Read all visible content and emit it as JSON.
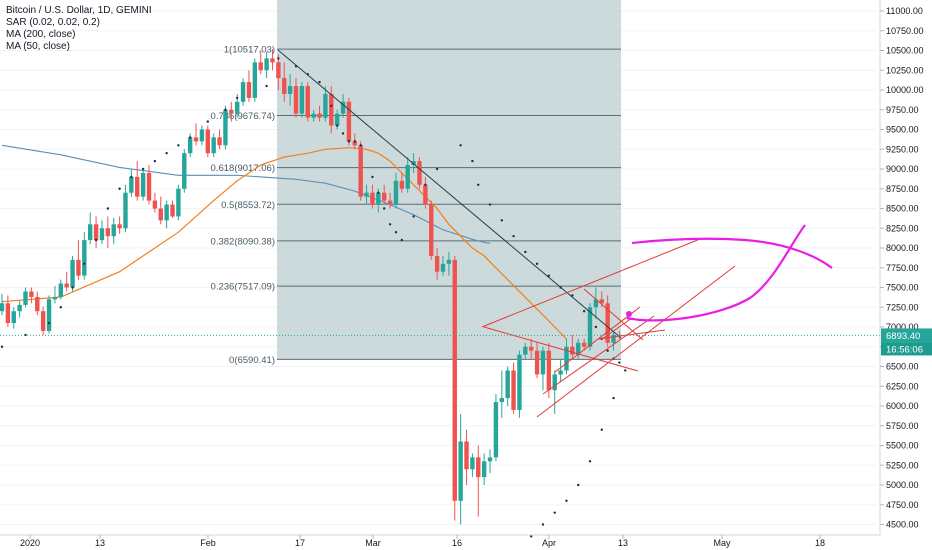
{
  "legend": {
    "symbol": "Bitcoin / U.S. Dollar, 1D, GEMINI",
    "sar": "SAR (0.02, 0.02, 0.2)",
    "ma200": "MA (200, close)",
    "ma50": "MA (50, close)"
  },
  "colors": {
    "up": "#26a69a",
    "down": "#ef5350",
    "fib_zone": "#b9cccd",
    "ma200": "#5b8fb9",
    "ma50": "#f57f17",
    "sar": "#1c2b4a",
    "trend": "#e53935",
    "magenta": "#e91ee5",
    "last_price_bg": "#26a69a",
    "countdown_bg": "#1b9c8f"
  },
  "price_axis": {
    "labels": [
      "11000.00",
      "10750.00",
      "10500.00",
      "10250.00",
      "10000.00",
      "9750.00",
      "9500.00",
      "9250.00",
      "9000.00",
      "8750.00",
      "8500.00",
      "8250.00",
      "8000.00",
      "7750.00",
      "7500.00",
      "7250.00",
      "7000.00",
      "6750.00",
      "6500.00",
      "6250.00",
      "6000.00",
      "5750.00",
      "5500.00",
      "5250.00",
      "5000.00",
      "4750.00",
      "4500.00"
    ],
    "last_price": "6893.40",
    "countdown": "16:56:06"
  },
  "time_axis": {
    "labels": [
      "2020",
      "13",
      "Feb",
      "17",
      "Mar",
      "16",
      "Apr",
      "13",
      "May",
      "18"
    ]
  },
  "fib": {
    "levels": [
      {
        "label": "1(10517.03)",
        "price": 10517.03
      },
      {
        "label": "0.786(9676.74)",
        "price": 9676.74
      },
      {
        "label": "0.618(9017.06)",
        "price": 9017.06
      },
      {
        "label": "0.5(8553.72)",
        "price": 8553.72
      },
      {
        "label": "0.382(8090.38)",
        "price": 8090.38
      },
      {
        "label": "0.236(7517.09)",
        "price": 7517.09
      },
      {
        "label": "0(6590.41)",
        "price": 6590.41
      }
    ]
  },
  "chart_data": {
    "type": "candlestick",
    "title": "Bitcoin / U.S. Dollar, 1D, GEMINI",
    "ylim": [
      4400,
      11100
    ],
    "x_start": "2020-01-01",
    "candles": [
      {
        "o": 7200,
        "h": 7420,
        "l": 7150,
        "c": 7300
      },
      {
        "o": 7300,
        "h": 7400,
        "l": 7000,
        "c": 7050
      },
      {
        "o": 7050,
        "h": 7250,
        "l": 6980,
        "c": 7200
      },
      {
        "o": 7200,
        "h": 7330,
        "l": 7120,
        "c": 7280
      },
      {
        "o": 7280,
        "h": 7500,
        "l": 7250,
        "c": 7450
      },
      {
        "o": 7450,
        "h": 7500,
        "l": 7300,
        "c": 7380
      },
      {
        "o": 7380,
        "h": 7450,
        "l": 7150,
        "c": 7200
      },
      {
        "o": 7200,
        "h": 7260,
        "l": 6900,
        "c": 6950
      },
      {
        "o": 6950,
        "h": 7400,
        "l": 6920,
        "c": 7350
      },
      {
        "o": 7350,
        "h": 7520,
        "l": 7300,
        "c": 7380
      },
      {
        "o": 7380,
        "h": 7600,
        "l": 7350,
        "c": 7550
      },
      {
        "o": 7550,
        "h": 7700,
        "l": 7450,
        "c": 7500
      },
      {
        "o": 7500,
        "h": 7900,
        "l": 7450,
        "c": 7850
      },
      {
        "o": 7850,
        "h": 8100,
        "l": 7600,
        "c": 7650
      },
      {
        "o": 7650,
        "h": 8200,
        "l": 7600,
        "c": 8100
      },
      {
        "o": 8100,
        "h": 8450,
        "l": 8050,
        "c": 8300
      },
      {
        "o": 8300,
        "h": 8400,
        "l": 8000,
        "c": 8100
      },
      {
        "o": 8100,
        "h": 8350,
        "l": 8050,
        "c": 8250
      },
      {
        "o": 8250,
        "h": 8400,
        "l": 8000,
        "c": 8150
      },
      {
        "o": 8150,
        "h": 8380,
        "l": 8050,
        "c": 8300
      },
      {
        "o": 8300,
        "h": 8400,
        "l": 8180,
        "c": 8250
      },
      {
        "o": 8250,
        "h": 8800,
        "l": 8200,
        "c": 8700
      },
      {
        "o": 8700,
        "h": 9000,
        "l": 8650,
        "c": 8900
      },
      {
        "o": 8900,
        "h": 9100,
        "l": 8600,
        "c": 8650
      },
      {
        "o": 8650,
        "h": 9000,
        "l": 8600,
        "c": 8950
      },
      {
        "o": 8950,
        "h": 9050,
        "l": 8550,
        "c": 8600
      },
      {
        "o": 8600,
        "h": 8700,
        "l": 8450,
        "c": 8500
      },
      {
        "o": 8500,
        "h": 8650,
        "l": 8300,
        "c": 8350
      },
      {
        "o": 8350,
        "h": 8600,
        "l": 8250,
        "c": 8550
      },
      {
        "o": 8550,
        "h": 8600,
        "l": 8380,
        "c": 8400
      },
      {
        "o": 8400,
        "h": 8800,
        "l": 8350,
        "c": 8750
      },
      {
        "o": 8750,
        "h": 9250,
        "l": 8700,
        "c": 9200
      },
      {
        "o": 9200,
        "h": 9450,
        "l": 9150,
        "c": 9400
      },
      {
        "o": 9400,
        "h": 9580,
        "l": 9300,
        "c": 9350
      },
      {
        "o": 9350,
        "h": 9550,
        "l": 9300,
        "c": 9500
      },
      {
        "o": 9500,
        "h": 9550,
        "l": 9150,
        "c": 9200
      },
      {
        "o": 9200,
        "h": 9450,
        "l": 9150,
        "c": 9400
      },
      {
        "o": 9400,
        "h": 9500,
        "l": 9250,
        "c": 9300
      },
      {
        "o": 9300,
        "h": 9800,
        "l": 9250,
        "c": 9750
      },
      {
        "o": 9750,
        "h": 9850,
        "l": 9600,
        "c": 9700
      },
      {
        "o": 9700,
        "h": 9950,
        "l": 9650,
        "c": 9850
      },
      {
        "o": 9850,
        "h": 10150,
        "l": 9800,
        "c": 10100
      },
      {
        "o": 10100,
        "h": 10250,
        "l": 9850,
        "c": 9900
      },
      {
        "o": 9900,
        "h": 10400,
        "l": 9850,
        "c": 10350
      },
      {
        "o": 10350,
        "h": 10500,
        "l": 10200,
        "c": 10250
      },
      {
        "o": 10250,
        "h": 10480,
        "l": 10150,
        "c": 10400
      },
      {
        "o": 10400,
        "h": 10517,
        "l": 10250,
        "c": 10350
      },
      {
        "o": 10350,
        "h": 10450,
        "l": 10000,
        "c": 10150
      },
      {
        "o": 10150,
        "h": 10350,
        "l": 9850,
        "c": 9950
      },
      {
        "o": 9950,
        "h": 10200,
        "l": 9800,
        "c": 10050
      },
      {
        "o": 10050,
        "h": 10150,
        "l": 9650,
        "c": 9700
      },
      {
        "o": 9700,
        "h": 10100,
        "l": 9650,
        "c": 10050
      },
      {
        "o": 10050,
        "h": 10100,
        "l": 9600,
        "c": 9650
      },
      {
        "o": 9650,
        "h": 9750,
        "l": 9600,
        "c": 9700
      },
      {
        "o": 9700,
        "h": 9800,
        "l": 9600,
        "c": 9650
      },
      {
        "o": 9650,
        "h": 10050,
        "l": 9600,
        "c": 9950
      },
      {
        "o": 9950,
        "h": 10050,
        "l": 9450,
        "c": 9550
      },
      {
        "o": 9550,
        "h": 9750,
        "l": 9500,
        "c": 9700
      },
      {
        "o": 9700,
        "h": 9950,
        "l": 9650,
        "c": 9850
      },
      {
        "o": 9850,
        "h": 9900,
        "l": 9300,
        "c": 9350
      },
      {
        "o": 9350,
        "h": 9450,
        "l": 9250,
        "c": 9300
      },
      {
        "o": 9300,
        "h": 9350,
        "l": 8600,
        "c": 8650
      },
      {
        "o": 8650,
        "h": 8800,
        "l": 8550,
        "c": 8700
      },
      {
        "o": 8700,
        "h": 8800,
        "l": 8500,
        "c": 8550
      },
      {
        "o": 8550,
        "h": 8750,
        "l": 8450,
        "c": 8700
      },
      {
        "o": 8700,
        "h": 8800,
        "l": 8550,
        "c": 8600
      },
      {
        "o": 8600,
        "h": 8700,
        "l": 8500,
        "c": 8550
      },
      {
        "o": 8550,
        "h": 8950,
        "l": 8500,
        "c": 8850
      },
      {
        "o": 8850,
        "h": 8950,
        "l": 8700,
        "c": 8750
      },
      {
        "o": 8750,
        "h": 9150,
        "l": 8700,
        "c": 9050
      },
      {
        "o": 9050,
        "h": 9200,
        "l": 8950,
        "c": 9100
      },
      {
        "o": 9100,
        "h": 9150,
        "l": 8750,
        "c": 8800
      },
      {
        "o": 8800,
        "h": 8900,
        "l": 8500,
        "c": 8550
      },
      {
        "o": 8550,
        "h": 8600,
        "l": 7850,
        "c": 7900
      },
      {
        "o": 7900,
        "h": 8000,
        "l": 7600,
        "c": 7700
      },
      {
        "o": 7700,
        "h": 7900,
        "l": 7650,
        "c": 7800
      },
      {
        "o": 7800,
        "h": 7950,
        "l": 7650,
        "c": 7850
      },
      {
        "o": 7850,
        "h": 7900,
        "l": 4550,
        "c": 4800
      },
      {
        "o": 4800,
        "h": 5900,
        "l": 4500,
        "c": 5550
      },
      {
        "o": 5550,
        "h": 5700,
        "l": 5000,
        "c": 5200
      },
      {
        "o": 5200,
        "h": 5400,
        "l": 5100,
        "c": 5350
      },
      {
        "o": 5350,
        "h": 5500,
        "l": 4600,
        "c": 5100
      },
      {
        "o": 5100,
        "h": 5400,
        "l": 5000,
        "c": 5300
      },
      {
        "o": 5300,
        "h": 5450,
        "l": 5150,
        "c": 5350
      },
      {
        "o": 5350,
        "h": 6150,
        "l": 5300,
        "c": 6050
      },
      {
        "o": 6050,
        "h": 6450,
        "l": 5850,
        "c": 6100
      },
      {
        "o": 6100,
        "h": 6500,
        "l": 6000,
        "c": 6450
      },
      {
        "o": 6450,
        "h": 6550,
        "l": 5900,
        "c": 5950
      },
      {
        "o": 5950,
        "h": 6700,
        "l": 5850,
        "c": 6650
      },
      {
        "o": 6650,
        "h": 6800,
        "l": 6600,
        "c": 6750
      },
      {
        "o": 6750,
        "h": 6850,
        "l": 6600,
        "c": 6700
      },
      {
        "o": 6700,
        "h": 6800,
        "l": 6350,
        "c": 6400
      },
      {
        "o": 6400,
        "h": 6750,
        "l": 6200,
        "c": 6700
      },
      {
        "o": 6700,
        "h": 6800,
        "l": 6100,
        "c": 6200
      },
      {
        "o": 6200,
        "h": 6450,
        "l": 5900,
        "c": 6400
      },
      {
        "o": 6400,
        "h": 6600,
        "l": 6300,
        "c": 6450
      },
      {
        "o": 6450,
        "h": 6850,
        "l": 6400,
        "c": 6750
      },
      {
        "o": 6750,
        "h": 6900,
        "l": 6600,
        "c": 6650
      },
      {
        "o": 6650,
        "h": 6850,
        "l": 6600,
        "c": 6800
      },
      {
        "o": 6800,
        "h": 6850,
        "l": 6700,
        "c": 6750
      },
      {
        "o": 6750,
        "h": 7300,
        "l": 6700,
        "c": 7250
      },
      {
        "o": 7250,
        "h": 7500,
        "l": 7100,
        "c": 7350
      },
      {
        "o": 7350,
        "h": 7450,
        "l": 7250,
        "c": 7300
      },
      {
        "o": 7300,
        "h": 7400,
        "l": 6750,
        "c": 6800
      },
      {
        "o": 6800,
        "h": 6950,
        "l": 6700,
        "c": 6900
      },
      {
        "o": 6900,
        "h": 6950,
        "l": 6850,
        "c": 6893
      }
    ],
    "ma50": [
      [
        0,
        7320
      ],
      [
        10,
        7380
      ],
      [
        20,
        7700
      ],
      [
        30,
        8200
      ],
      [
        36,
        8600
      ],
      [
        40,
        8850
      ],
      [
        44,
        9050
      ],
      [
        48,
        9150
      ],
      [
        52,
        9200
      ],
      [
        55,
        9250
      ],
      [
        59,
        9270
      ],
      [
        62,
        9250
      ],
      [
        64,
        9200
      ],
      [
        66,
        9100
      ],
      [
        68,
        8950
      ],
      [
        70,
        8800
      ],
      [
        72,
        8650
      ],
      [
        74,
        8500
      ],
      [
        76,
        8300
      ],
      [
        78,
        8150
      ],
      [
        80,
        8000
      ],
      [
        82,
        7900
      ],
      [
        84,
        7750
      ],
      [
        86,
        7600
      ],
      [
        88,
        7450
      ],
      [
        90,
        7300
      ],
      [
        92,
        7150
      ],
      [
        94,
        7000
      ],
      [
        96,
        6850
      ]
    ],
    "ma200": [
      [
        0,
        9300
      ],
      [
        10,
        9180
      ],
      [
        20,
        9020
      ],
      [
        30,
        8920
      ],
      [
        40,
        8920
      ],
      [
        50,
        8870
      ],
      [
        55,
        8820
      ],
      [
        60,
        8720
      ],
      [
        65,
        8580
      ],
      [
        70,
        8420
      ],
      [
        75,
        8230
      ],
      [
        80,
        8110
      ],
      [
        82,
        8070
      ],
      [
        83,
        8060
      ]
    ],
    "sar": [
      [
        0,
        6750
      ],
      [
        4,
        6900
      ],
      [
        8,
        7050
      ],
      [
        10,
        7250
      ],
      [
        12,
        7500
      ],
      [
        14,
        7800
      ],
      [
        16,
        8100
      ],
      [
        18,
        8500
      ],
      [
        20,
        8750
      ],
      [
        22,
        8900
      ],
      [
        24,
        9000
      ],
      [
        26,
        9100
      ],
      [
        28,
        9200
      ],
      [
        30,
        9300
      ],
      [
        32,
        9400
      ],
      [
        35,
        9600
      ],
      [
        38,
        9750
      ],
      [
        40,
        9900
      ],
      [
        45,
        10050
      ],
      [
        47,
        10400
      ],
      [
        50,
        10300
      ],
      [
        52,
        10200
      ],
      [
        54,
        10100
      ],
      [
        56,
        9800
      ],
      [
        57,
        9550
      ],
      [
        58,
        9450
      ],
      [
        59,
        9350
      ],
      [
        60,
        9350
      ],
      [
        61,
        9300
      ],
      [
        63,
        8900
      ],
      [
        64,
        8700
      ],
      [
        65,
        8500
      ],
      [
        66,
        8300
      ],
      [
        67,
        8200
      ],
      [
        68,
        8100
      ],
      [
        70,
        8400
      ],
      [
        72,
        8800
      ],
      [
        74,
        9000
      ],
      [
        78,
        9300
      ],
      [
        80,
        9100
      ],
      [
        81,
        8800
      ],
      [
        83,
        8550
      ],
      [
        85,
        8350
      ],
      [
        87,
        8150
      ],
      [
        89,
        7950
      ],
      [
        91,
        7800
      ],
      [
        93,
        7650
      ],
      [
        95,
        7500
      ],
      [
        97,
        7400
      ],
      [
        99,
        7200
      ],
      [
        101,
        7000
      ],
      [
        102,
        6850
      ],
      [
        103,
        6700
      ],
      [
        104,
        6600
      ],
      [
        105,
        6550
      ],
      [
        90,
        4350
      ],
      [
        92,
        4500
      ],
      [
        94,
        4650
      ],
      [
        96,
        4800
      ],
      [
        98,
        5000
      ],
      [
        100,
        5300
      ],
      [
        102,
        5700
      ],
      [
        104,
        6100
      ],
      [
        106,
        6450
      ]
    ]
  }
}
